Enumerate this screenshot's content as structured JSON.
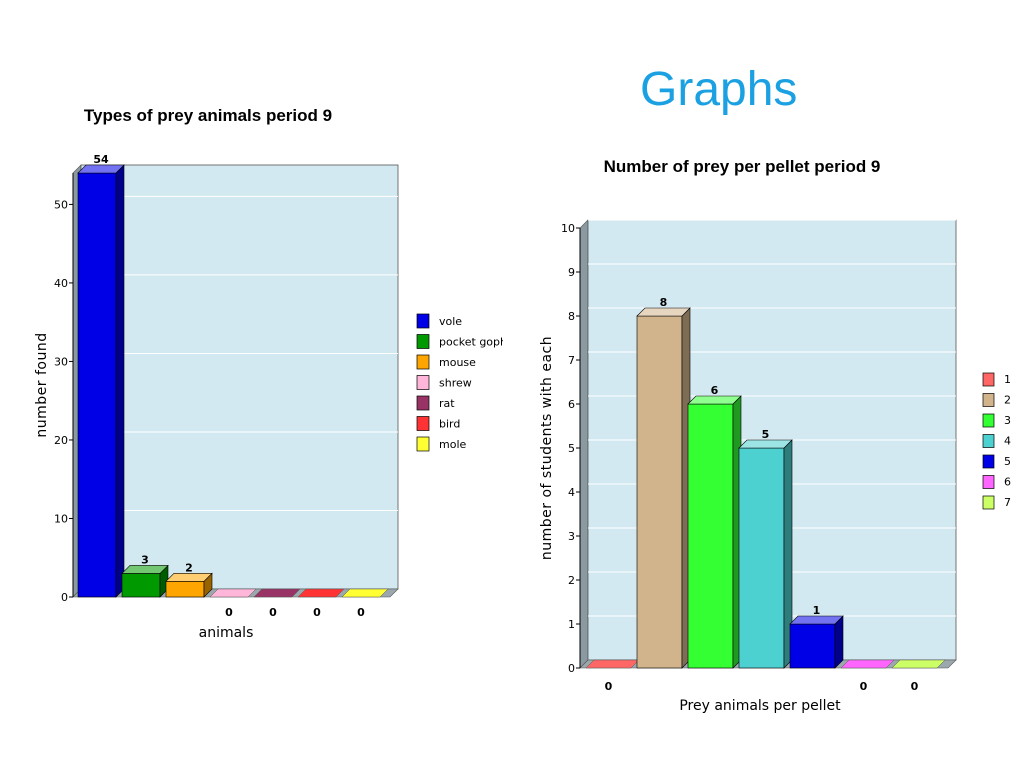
{
  "slide": {
    "title": "Graphs"
  },
  "chart_data": [
    {
      "type": "bar",
      "title": "Types of prey animals period 9",
      "xlabel": "animals",
      "ylabel": "number found",
      "ylim": [
        0,
        54
      ],
      "yticks": [
        0,
        10,
        20,
        30,
        40,
        50
      ],
      "grid": true,
      "legend_position": "right",
      "categories": [
        "vole",
        "pocket gopher",
        "mouse",
        "shrew",
        "rat",
        "bird",
        "mole"
      ],
      "legend_labels": [
        "vole",
        "pocket goph",
        "mouse",
        "shrew",
        "rat",
        "bird",
        "mole"
      ],
      "values": [
        54,
        3,
        2,
        0,
        0,
        0,
        0
      ],
      "data_labels": [
        "54",
        "3",
        "2",
        "0",
        "0",
        "0",
        "0"
      ],
      "colors": [
        "#0000e6",
        "#009900",
        "#ffa500",
        "#ffb6d9",
        "#993366",
        "#ff3333",
        "#ffff33"
      ]
    },
    {
      "type": "bar",
      "title": "Number of prey per pellet period 9",
      "xlabel": "Prey animals per pellet",
      "ylabel": "number of students with each",
      "ylim": [
        0,
        10
      ],
      "yticks": [
        0,
        1,
        2,
        3,
        4,
        5,
        6,
        7,
        8,
        9,
        10
      ],
      "grid": true,
      "legend_position": "right",
      "categories": [
        "1",
        "2",
        "3",
        "4",
        "5",
        "6",
        "7"
      ],
      "legend_labels": [
        "1",
        "2",
        "3",
        "4",
        "5",
        "6",
        "7"
      ],
      "values": [
        0,
        8,
        6,
        5,
        1,
        0,
        0
      ],
      "data_labels": [
        "0",
        "8",
        "6",
        "5",
        "1",
        "0",
        "0"
      ],
      "colors": [
        "#ff6666",
        "#d2b48c",
        "#33ff33",
        "#4dd0d0",
        "#0000e6",
        "#ff66ff",
        "#ccff66"
      ]
    }
  ]
}
